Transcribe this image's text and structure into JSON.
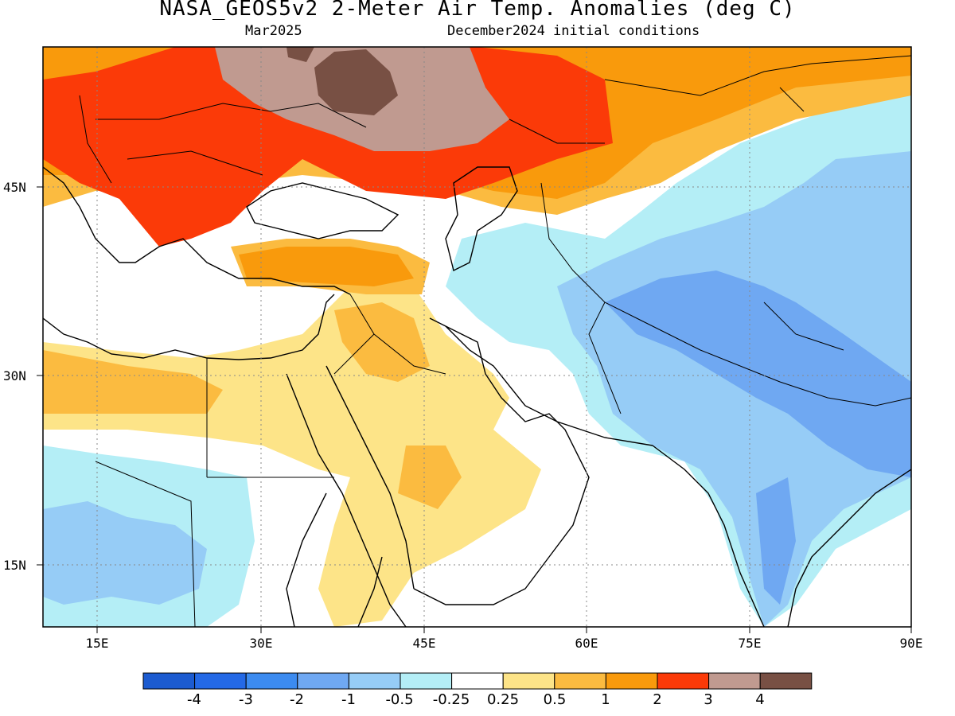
{
  "title": "NASA_GEOS5v2 2-Meter Air Temp. Anomalies (deg C)",
  "subtitle_left": "Mar2025",
  "subtitle_right": "December2024 initial conditions",
  "map": {
    "extent": {
      "lon_min": 10,
      "lon_max": 90,
      "lat_min": 9.8,
      "lat_max": 56.4
    },
    "lon_ticks": [
      "15E",
      "30E",
      "45E",
      "60E",
      "75E",
      "90E"
    ],
    "lat_ticks": [
      "45N",
      "30N",
      "15N"
    ],
    "gridlines": "dotted"
  },
  "colorbar": {
    "tick_labels": [
      "-4",
      "-3",
      "-2",
      "-1",
      "-0.5",
      "-0.25",
      "0.25",
      "0.5",
      "1",
      "2",
      "3",
      "4"
    ],
    "colors": [
      "#1c5bd0",
      "#2469e6",
      "#3c8bf0",
      "#6fa8f2",
      "#96ccf6",
      "#b4eef6",
      "#ffffff",
      "#fde488",
      "#fbbb40",
      "#f99a0c",
      "#fb3a08",
      "#c09a90",
      "#785044"
    ]
  }
}
